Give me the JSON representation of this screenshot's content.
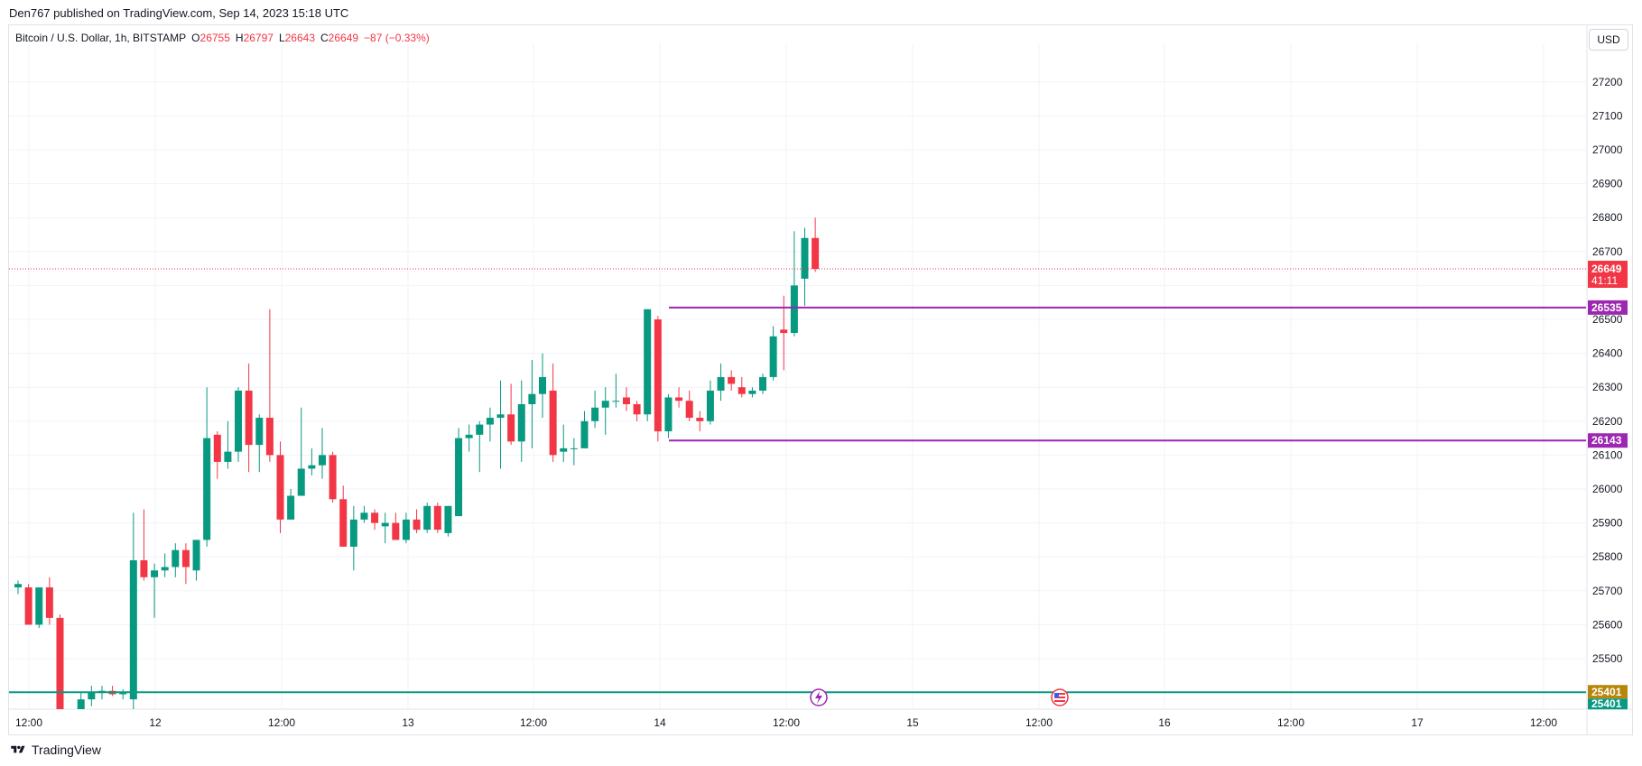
{
  "publisher_line": "Den767 published on TradingView.com, Sep 14, 2023 15:18 UTC",
  "legend": {
    "symbol": "Bitcoin / U.S. Dollar, 1h, BITSTAMP",
    "o_label": "O",
    "o_value": "26755",
    "h_label": "H",
    "h_value": "26797",
    "l_label": "L",
    "l_value": "26643",
    "c_label": "C",
    "c_value": "26649",
    "change": "−87 (−0.33%)"
  },
  "currency_button": "USD",
  "footer_brand": "TradingView",
  "colors": {
    "up": "#089981",
    "down": "#f23645",
    "level_lines": "#9c27b0",
    "horizontal_line": "#089981",
    "price_label_bg": "#f23645",
    "gold_label_bg": "#b8860b"
  },
  "icons": [
    "lightning-event-icon",
    "us-flag-event-icon",
    "tradingview-logo-icon"
  ],
  "chart_data": {
    "type": "candlestick",
    "y_axis_ticks": [
      25400,
      25500,
      25600,
      25700,
      25800,
      25900,
      26000,
      26100,
      26200,
      26300,
      26400,
      26500,
      26600,
      26700,
      26800,
      26900,
      27000,
      27100,
      27200
    ],
    "y_axis_labels": [
      "25500",
      "25600",
      "25700",
      "25800",
      "25900",
      "26000",
      "26100",
      "26200",
      "26300",
      "26400",
      "26500",
      "26700",
      "26800",
      "26900",
      "27000",
      "27100",
      "27200"
    ],
    "ylim": [
      25360,
      27340
    ],
    "x_axis_labels": [
      "12:00",
      "12",
      "12:00",
      "13",
      "12:00",
      "14",
      "12:00",
      "15",
      "12:00",
      "16",
      "12:00",
      "17",
      "12:00"
    ],
    "last_price": {
      "value": "26649",
      "countdown": "41:11"
    },
    "levels": [
      {
        "value": 26535,
        "label": "26535"
      },
      {
        "value": 26143,
        "label": "26143"
      }
    ],
    "horizontal_line": {
      "value": 25401,
      "labels": [
        "25401",
        "25401"
      ]
    },
    "candles": [
      [
        25710,
        25730,
        25690,
        25720
      ],
      [
        25710,
        25720,
        25600,
        25600
      ],
      [
        25600,
        25710,
        25590,
        25710
      ],
      [
        25710,
        25740,
        25600,
        25620
      ],
      [
        25620,
        25630,
        25200,
        25300
      ],
      [
        25250,
        25320,
        25200,
        25300
      ],
      [
        25350,
        25400,
        25300,
        25380
      ],
      [
        25380,
        25420,
        25360,
        25400
      ],
      [
        25400,
        25420,
        25380,
        25405
      ],
      [
        25405,
        25420,
        25390,
        25395
      ],
      [
        25395,
        25410,
        25380,
        25400
      ],
      [
        25380,
        25930,
        25300,
        25790
      ],
      [
        25790,
        25940,
        25730,
        25740
      ],
      [
        25740,
        25780,
        25620,
        25760
      ],
      [
        25760,
        25810,
        25740,
        25770
      ],
      [
        25770,
        25840,
        25740,
        25820
      ],
      [
        25820,
        25840,
        25720,
        25770
      ],
      [
        25760,
        25850,
        25730,
        25850
      ],
      [
        25850,
        26300,
        25830,
        26150
      ],
      [
        26160,
        26170,
        26030,
        26080
      ],
      [
        26080,
        26200,
        26060,
        26110
      ],
      [
        26110,
        26300,
        26080,
        26290
      ],
      [
        26290,
        26370,
        26050,
        26130
      ],
      [
        26130,
        26220,
        26050,
        26210
      ],
      [
        26210,
        26530,
        26080,
        26100
      ],
      [
        26100,
        26140,
        25870,
        25910
      ],
      [
        25910,
        26000,
        25910,
        25980
      ],
      [
        25980,
        26240,
        25980,
        26060
      ],
      [
        26060,
        26120,
        26040,
        26070
      ],
      [
        26070,
        26180,
        26030,
        26100
      ],
      [
        26100,
        26110,
        25960,
        25970
      ],
      [
        25970,
        26010,
        25830,
        25830
      ],
      [
        25830,
        25950,
        25760,
        25910
      ],
      [
        25910,
        25950,
        25900,
        25930
      ],
      [
        25930,
        25940,
        25880,
        25900
      ],
      [
        25890,
        25930,
        25840,
        25900
      ],
      [
        25900,
        25930,
        25850,
        25850
      ],
      [
        25850,
        25930,
        25840,
        25910
      ],
      [
        25910,
        25940,
        25870,
        25880
      ],
      [
        25880,
        25960,
        25870,
        25950
      ],
      [
        25950,
        25960,
        25870,
        25880
      ],
      [
        25870,
        25950,
        25860,
        25950
      ],
      [
        25920,
        26180,
        25920,
        26150
      ],
      [
        26150,
        26190,
        26110,
        26160
      ],
      [
        26160,
        26200,
        26050,
        26190
      ],
      [
        26190,
        26240,
        26140,
        26210
      ],
      [
        26210,
        26320,
        26060,
        26220
      ],
      [
        26220,
        26310,
        26130,
        26140
      ],
      [
        26140,
        26320,
        26080,
        26250
      ],
      [
        26250,
        26380,
        26120,
        26280
      ],
      [
        26280,
        26400,
        26210,
        26330
      ],
      [
        26290,
        26370,
        26080,
        26100
      ],
      [
        26110,
        26190,
        26080,
        26120
      ],
      [
        26120,
        26150,
        26070,
        26120
      ],
      [
        26120,
        26230,
        26120,
        26200
      ],
      [
        26200,
        26290,
        26180,
        26240
      ],
      [
        26240,
        26300,
        26160,
        26260
      ],
      [
        26260,
        26340,
        26240,
        26260
      ],
      [
        26270,
        26300,
        26230,
        26250
      ],
      [
        26250,
        26260,
        26200,
        26220
      ],
      [
        26220,
        26530,
        26200,
        26530
      ],
      [
        26500,
        26510,
        26140,
        26170
      ],
      [
        26170,
        26280,
        26150,
        26270
      ],
      [
        26270,
        26300,
        26240,
        26260
      ],
      [
        26260,
        26290,
        26200,
        26210
      ],
      [
        26210,
        26230,
        26170,
        26200
      ],
      [
        26200,
        26320,
        26190,
        26290
      ],
      [
        26290,
        26370,
        26260,
        26330
      ],
      [
        26330,
        26350,
        26290,
        26310
      ],
      [
        26300,
        26330,
        26270,
        26280
      ],
      [
        26280,
        26300,
        26270,
        26290
      ],
      [
        26290,
        26340,
        26280,
        26330
      ],
      [
        26330,
        26480,
        26320,
        26450
      ],
      [
        26470,
        26570,
        26350,
        26460
      ],
      [
        26460,
        26760,
        26450,
        26600
      ],
      [
        26620,
        26770,
        26540,
        26740
      ],
      [
        26740,
        26800,
        26640,
        26649
      ]
    ]
  }
}
